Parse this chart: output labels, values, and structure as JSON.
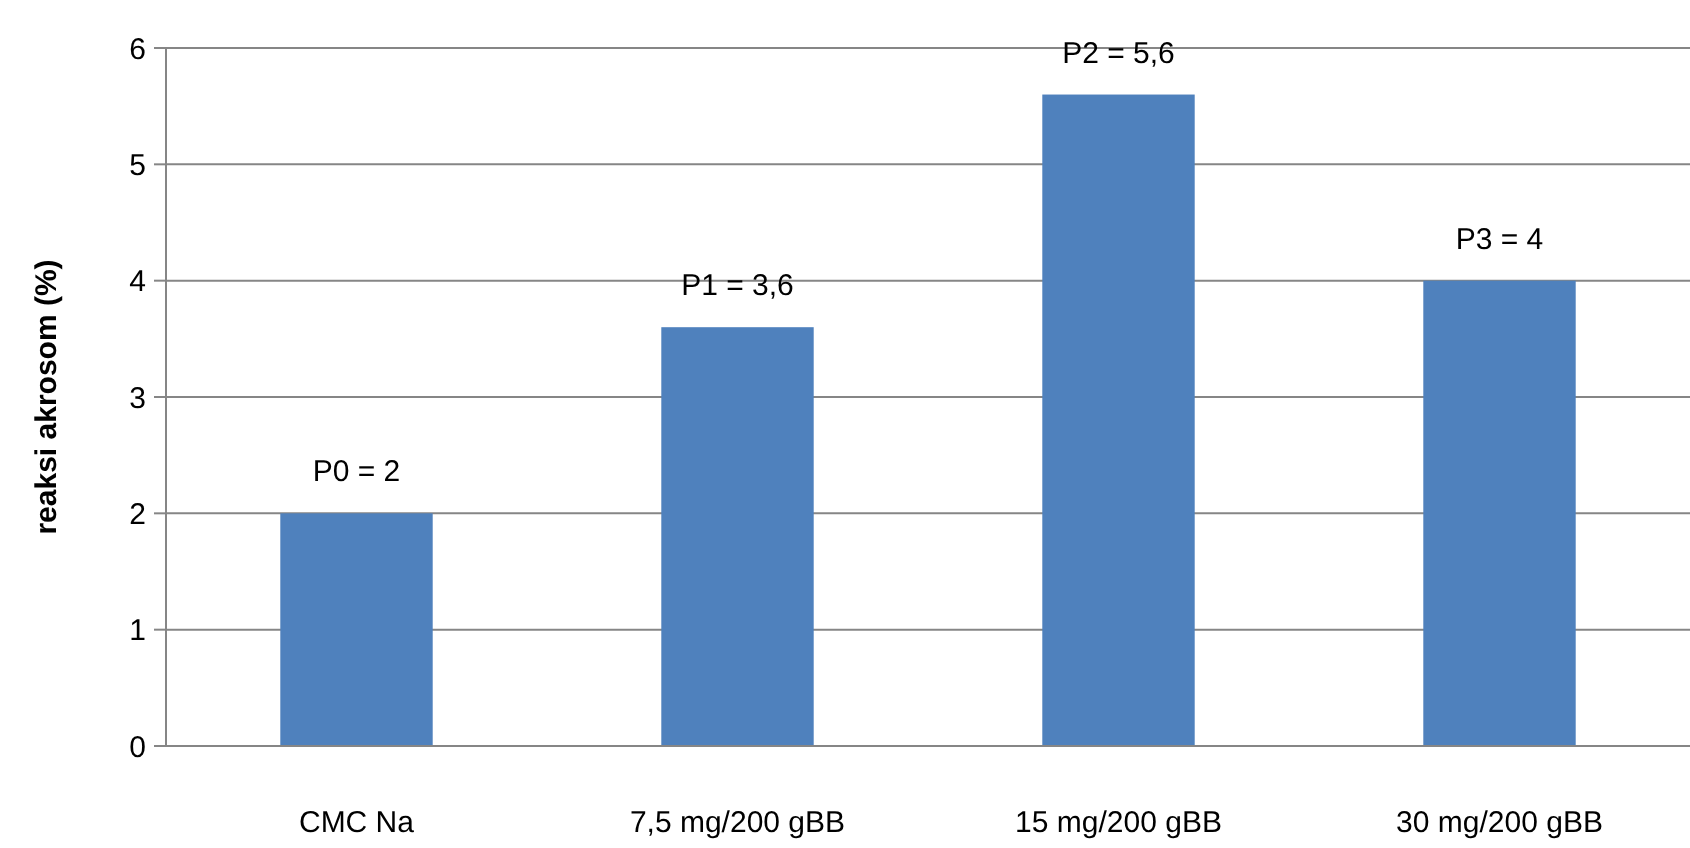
{
  "chart_data": {
    "type": "bar",
    "ylabel": "reaksi akrosom (%)",
    "categories": [
      "CMC Na",
      "7,5 mg/200 gBB",
      "15 mg/200 gBB",
      "30 mg/200 gBB"
    ],
    "values": [
      2,
      3.6,
      5.6,
      4
    ],
    "value_labels": [
      "P0 = 2",
      "P1 = 3,6",
      "P2 = 5,6",
      "P3 = 4"
    ],
    "color": "#4f81bd",
    "ylim": [
      0,
      6
    ],
    "yticks": [
      0,
      1,
      2,
      3,
      4,
      5,
      6
    ],
    "grid": "y"
  }
}
